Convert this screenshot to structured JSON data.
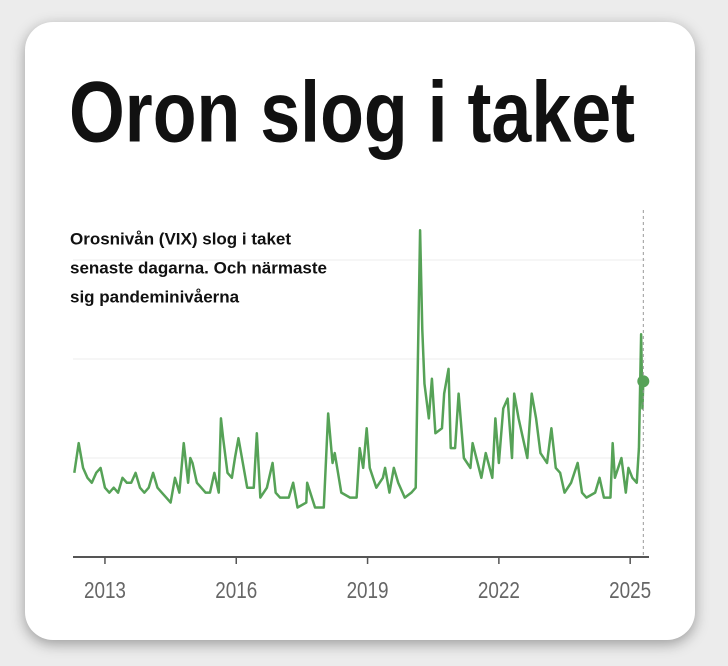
{
  "chart_data": {
    "type": "line",
    "title": "Oron slog i taket",
    "annotation_lines": [
      "Orosnivån (VIX) slog i taket",
      "senaste dagarna. Och närmaste",
      "sig pandeminivåerna"
    ],
    "color": "#56a257",
    "highlight_last": true,
    "grid": true,
    "ygrid": [
      20,
      40,
      60
    ],
    "xlim": [
      2012.27,
      2025.35
    ],
    "ylim": [
      0,
      70
    ],
    "xticks": [
      2013,
      2016,
      2019,
      2022,
      2025
    ],
    "x": [
      2012.3,
      2012.4,
      2012.5,
      2012.6,
      2012.7,
      2012.8,
      2012.9,
      2013.0,
      2013.1,
      2013.2,
      2013.3,
      2013.4,
      2013.5,
      2013.6,
      2013.7,
      2013.8,
      2013.9,
      2014.0,
      2014.1,
      2014.2,
      2014.3,
      2014.4,
      2014.5,
      2014.6,
      2014.7,
      2014.8,
      2014.9,
      2014.95,
      2015.0,
      2015.1,
      2015.2,
      2015.3,
      2015.4,
      2015.5,
      2015.6,
      2015.65,
      2015.7,
      2015.8,
      2015.9,
      2015.97,
      2016.05,
      2016.15,
      2016.25,
      2016.4,
      2016.47,
      2016.55,
      2016.7,
      2016.83,
      2016.9,
      2017.0,
      2017.2,
      2017.3,
      2017.4,
      2017.6,
      2017.62,
      2017.8,
      2018.0,
      2018.1,
      2018.2,
      2018.25,
      2018.4,
      2018.6,
      2018.75,
      2018.82,
      2018.9,
      2018.98,
      2019.05,
      2019.2,
      2019.35,
      2019.4,
      2019.5,
      2019.6,
      2019.7,
      2019.85,
      2020.0,
      2020.1,
      2020.15,
      2020.2,
      2020.25,
      2020.3,
      2020.4,
      2020.47,
      2020.55,
      2020.7,
      2020.75,
      2020.85,
      2020.9,
      2021.0,
      2021.08,
      2021.2,
      2021.35,
      2021.4,
      2021.6,
      2021.7,
      2021.85,
      2021.92,
      2022.0,
      2022.1,
      2022.2,
      2022.3,
      2022.35,
      2022.45,
      2022.55,
      2022.65,
      2022.75,
      2022.85,
      2022.95,
      2023.1,
      2023.2,
      2023.3,
      2023.4,
      2023.5,
      2023.65,
      2023.8,
      2023.9,
      2024.0,
      2024.2,
      2024.3,
      2024.4,
      2024.55,
      2024.6,
      2024.65,
      2024.8,
      2024.9,
      2024.96,
      2025.05,
      2025.15,
      2025.2,
      2025.25,
      2025.28,
      2025.3
    ],
    "values": [
      17,
      23,
      18,
      16,
      15,
      17,
      18,
      14,
      13,
      14,
      13,
      16,
      15,
      15,
      17,
      14,
      13,
      14,
      17,
      14,
      13,
      12,
      11,
      16,
      13,
      23,
      15,
      20,
      19,
      15,
      14,
      13,
      13,
      17,
      13,
      28,
      24,
      17,
      16,
      20,
      24,
      19,
      14,
      14,
      25,
      12,
      14,
      19,
      13,
      12,
      12,
      15,
      10,
      11,
      15,
      10,
      10,
      29,
      19,
      21,
      13,
      12,
      12,
      22,
      18,
      26,
      18,
      14,
      16,
      18,
      13,
      18,
      15,
      12,
      13,
      14,
      40,
      66,
      46,
      35,
      28,
      36,
      25,
      26,
      33,
      38,
      22,
      22,
      33,
      20,
      18,
      23,
      16,
      21,
      16,
      28,
      19,
      30,
      32,
      20,
      33,
      28,
      24,
      20,
      33,
      28,
      21,
      19,
      26,
      18,
      17,
      13,
      15,
      19,
      13,
      12,
      13,
      16,
      12,
      12,
      23,
      16,
      20,
      13,
      18,
      16,
      15,
      22,
      45,
      30,
      35.5
    ]
  }
}
